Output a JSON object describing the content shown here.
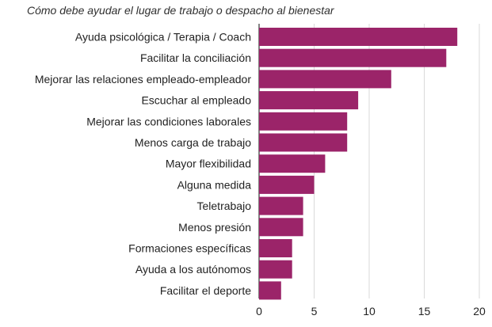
{
  "chart_data": {
    "type": "bar",
    "orientation": "horizontal",
    "title": "Cómo debe ayudar el lugar de trabajo o despacho al bienestar",
    "xlabel": "",
    "ylabel": "",
    "categories": [
      "Ayuda psicológica / Terapia / Coach",
      "Facilitar la conciliación",
      "Mejorar las relaciones empleado-empleador",
      "Escuchar al empleado",
      "Mejorar las condiciones laborales",
      "Menos carga de trabajo",
      "Mayor flexibilidad",
      "Alguna medida",
      "Teletrabajo",
      "Menos presión",
      "Formaciones específicas",
      "Ayuda a los autónomos",
      "Facilitar el deporte"
    ],
    "values": [
      18,
      17,
      12,
      9,
      8,
      8,
      6,
      5,
      4,
      4,
      3,
      3,
      2
    ],
    "xlim": [
      0,
      20
    ],
    "xticks": [
      0,
      5,
      10,
      15,
      20
    ],
    "grid": "vertical",
    "legend": "none",
    "bar_color": "#9b2469",
    "grid_color": "#d9d9d9",
    "axis_color": "#333333",
    "text_color": "#222222"
  }
}
